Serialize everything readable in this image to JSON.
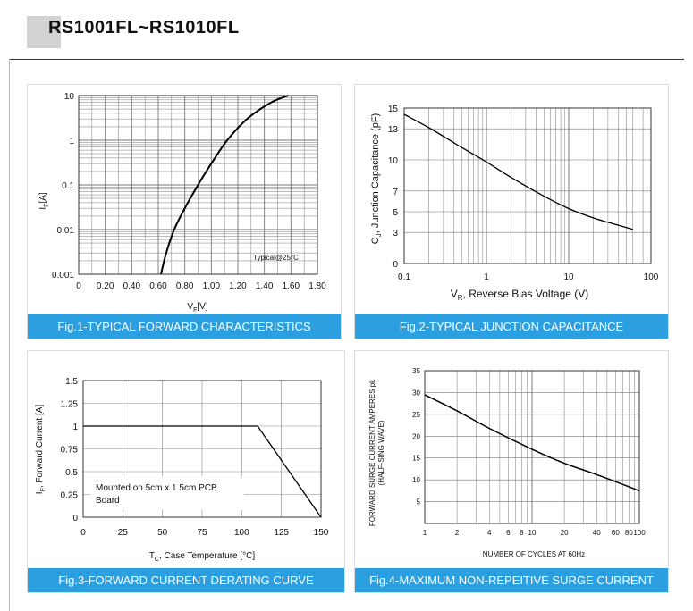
{
  "header": {
    "title": "RS1001FL~RS1010FL"
  },
  "chart_data": [
    {
      "type": "line",
      "caption": "Fig.1-TYPICAL FORWARD CHARACTERISTICS",
      "ylabel_main": "I",
      "ylabel_sub": "F",
      "ylabel_unit": "[A]",
      "xlabel_main": "V",
      "xlabel_sub": "F",
      "xlabel_unit": "[V]",
      "note": "Typical@25°C",
      "x_ticks": [
        "0",
        "0.20",
        "0.40",
        "0.60",
        "0.80",
        "1.00",
        "1.20",
        "1.40",
        "1.60",
        "1.80"
      ],
      "y_ticks": [
        "0.001",
        "0.01",
        "0.1",
        "1",
        "10"
      ],
      "xlim": [
        0,
        1.8
      ],
      "ylim": [
        0.001,
        10
      ],
      "yscale": "log",
      "grid": true,
      "points": [
        [
          0.62,
          0.001
        ],
        [
          0.66,
          0.003
        ],
        [
          0.72,
          0.01
        ],
        [
          0.8,
          0.03
        ],
        [
          0.9,
          0.1
        ],
        [
          1.0,
          0.3
        ],
        [
          1.12,
          1
        ],
        [
          1.27,
          3
        ],
        [
          1.45,
          7
        ],
        [
          1.58,
          10
        ]
      ]
    },
    {
      "type": "line",
      "caption": "Fig.2-TYPICAL JUNCTION CAPACITANCE",
      "ylabel_main": "C",
      "ylabel_sub": "J",
      "ylabel_rest": ", Junction Capacitance (pF)",
      "xlabel_main": "V",
      "xlabel_sub": "R",
      "xlabel_rest": ",   Reverse Bias Voltage (V)",
      "x_ticks": [
        "0.1",
        "1",
        "10",
        "100"
      ],
      "y_ticks": [
        "0",
        "3",
        "5",
        "7",
        "10",
        "13",
        "15"
      ],
      "xlim": [
        0.1,
        100
      ],
      "xscale": "log",
      "ylim": [
        0,
        15
      ],
      "grid": true,
      "points": [
        [
          0.1,
          14.4
        ],
        [
          0.2,
          13.1
        ],
        [
          0.5,
          11.2
        ],
        [
          1,
          9.8
        ],
        [
          2,
          8.3
        ],
        [
          5,
          6.5
        ],
        [
          10,
          5.3
        ],
        [
          20,
          4.4
        ],
        [
          40,
          3.7
        ],
        [
          60,
          3.3
        ]
      ]
    },
    {
      "type": "line",
      "caption": "Fig.3-FORWARD CURRENT DERATING CURVE",
      "ylabel_main": "I",
      "ylabel_sub": "F",
      "ylabel_rest": ", Forward Current  [A]",
      "xlabel_main": "T",
      "xlabel_sub": "C",
      "xlabel_rest": ", Case Temperature [°C]",
      "note_lines": [
        "Mounted on 5cm x 1.5cm PCB",
        "Board"
      ],
      "x_ticks": [
        "0",
        "25",
        "50",
        "75",
        "100",
        "125",
        "150"
      ],
      "y_ticks": [
        "0",
        "0.25",
        "0.5",
        "0.75",
        "1",
        "1.25",
        "1.5"
      ],
      "xlim": [
        0,
        150
      ],
      "ylim": [
        0,
        1.5
      ],
      "grid": true,
      "points": [
        [
          0,
          1
        ],
        [
          110,
          1
        ],
        [
          150,
          0
        ]
      ]
    },
    {
      "type": "line",
      "caption": "Fig.4-MAXIMUM NON-REPEITIVE SURGE CURRENT",
      "ylabel_line1": "FORWARD SURGE CURRENT AMPERES pk",
      "ylabel_line2": "(HALF-SING WAVE)",
      "xlabel": "NUMBER OF CYCLES AT 60Hz",
      "x_ticks": [
        "1",
        "2",
        "4",
        "6",
        "8",
        "10",
        "20",
        "40",
        "60",
        "80",
        "100"
      ],
      "y_ticks": [
        "5",
        "10",
        "15",
        "20",
        "25",
        "30",
        "35"
      ],
      "xlim": [
        1,
        100
      ],
      "xscale": "log",
      "ylim": [
        0,
        35
      ],
      "grid": true,
      "points": [
        [
          1,
          29.5
        ],
        [
          2,
          25.8
        ],
        [
          4,
          21.8
        ],
        [
          10,
          17
        ],
        [
          20,
          13.8
        ],
        [
          40,
          11.2
        ],
        [
          100,
          7.5
        ]
      ]
    }
  ]
}
